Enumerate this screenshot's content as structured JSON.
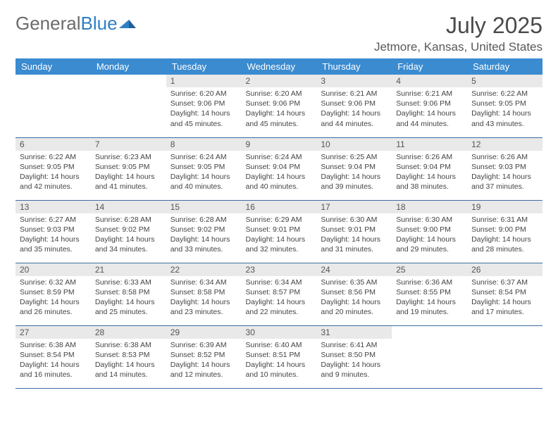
{
  "brand": {
    "part1": "General",
    "part2": "Blue"
  },
  "title": "July 2025",
  "location": "Jetmore, Kansas, United States",
  "colors": {
    "header_bg": "#3b8bd0",
    "header_text": "#ffffff",
    "daynum_bg": "#e9e9e9",
    "border": "#3b6ea0",
    "brand_gray": "#6b6b6b",
    "brand_blue": "#2f7fc4"
  },
  "weekdays": [
    "Sunday",
    "Monday",
    "Tuesday",
    "Wednesday",
    "Thursday",
    "Friday",
    "Saturday"
  ],
  "weeks": [
    [
      null,
      null,
      {
        "n": "1",
        "sunrise": "6:20 AM",
        "sunset": "9:06 PM",
        "daylight": "14 hours and 45 minutes."
      },
      {
        "n": "2",
        "sunrise": "6:20 AM",
        "sunset": "9:06 PM",
        "daylight": "14 hours and 45 minutes."
      },
      {
        "n": "3",
        "sunrise": "6:21 AM",
        "sunset": "9:06 PM",
        "daylight": "14 hours and 44 minutes."
      },
      {
        "n": "4",
        "sunrise": "6:21 AM",
        "sunset": "9:06 PM",
        "daylight": "14 hours and 44 minutes."
      },
      {
        "n": "5",
        "sunrise": "6:22 AM",
        "sunset": "9:05 PM",
        "daylight": "14 hours and 43 minutes."
      }
    ],
    [
      {
        "n": "6",
        "sunrise": "6:22 AM",
        "sunset": "9:05 PM",
        "daylight": "14 hours and 42 minutes."
      },
      {
        "n": "7",
        "sunrise": "6:23 AM",
        "sunset": "9:05 PM",
        "daylight": "14 hours and 41 minutes."
      },
      {
        "n": "8",
        "sunrise": "6:24 AM",
        "sunset": "9:05 PM",
        "daylight": "14 hours and 40 minutes."
      },
      {
        "n": "9",
        "sunrise": "6:24 AM",
        "sunset": "9:04 PM",
        "daylight": "14 hours and 40 minutes."
      },
      {
        "n": "10",
        "sunrise": "6:25 AM",
        "sunset": "9:04 PM",
        "daylight": "14 hours and 39 minutes."
      },
      {
        "n": "11",
        "sunrise": "6:26 AM",
        "sunset": "9:04 PM",
        "daylight": "14 hours and 38 minutes."
      },
      {
        "n": "12",
        "sunrise": "6:26 AM",
        "sunset": "9:03 PM",
        "daylight": "14 hours and 37 minutes."
      }
    ],
    [
      {
        "n": "13",
        "sunrise": "6:27 AM",
        "sunset": "9:03 PM",
        "daylight": "14 hours and 35 minutes."
      },
      {
        "n": "14",
        "sunrise": "6:28 AM",
        "sunset": "9:02 PM",
        "daylight": "14 hours and 34 minutes."
      },
      {
        "n": "15",
        "sunrise": "6:28 AM",
        "sunset": "9:02 PM",
        "daylight": "14 hours and 33 minutes."
      },
      {
        "n": "16",
        "sunrise": "6:29 AM",
        "sunset": "9:01 PM",
        "daylight": "14 hours and 32 minutes."
      },
      {
        "n": "17",
        "sunrise": "6:30 AM",
        "sunset": "9:01 PM",
        "daylight": "14 hours and 31 minutes."
      },
      {
        "n": "18",
        "sunrise": "6:30 AM",
        "sunset": "9:00 PM",
        "daylight": "14 hours and 29 minutes."
      },
      {
        "n": "19",
        "sunrise": "6:31 AM",
        "sunset": "9:00 PM",
        "daylight": "14 hours and 28 minutes."
      }
    ],
    [
      {
        "n": "20",
        "sunrise": "6:32 AM",
        "sunset": "8:59 PM",
        "daylight": "14 hours and 26 minutes."
      },
      {
        "n": "21",
        "sunrise": "6:33 AM",
        "sunset": "8:58 PM",
        "daylight": "14 hours and 25 minutes."
      },
      {
        "n": "22",
        "sunrise": "6:34 AM",
        "sunset": "8:58 PM",
        "daylight": "14 hours and 23 minutes."
      },
      {
        "n": "23",
        "sunrise": "6:34 AM",
        "sunset": "8:57 PM",
        "daylight": "14 hours and 22 minutes."
      },
      {
        "n": "24",
        "sunrise": "6:35 AM",
        "sunset": "8:56 PM",
        "daylight": "14 hours and 20 minutes."
      },
      {
        "n": "25",
        "sunrise": "6:36 AM",
        "sunset": "8:55 PM",
        "daylight": "14 hours and 19 minutes."
      },
      {
        "n": "26",
        "sunrise": "6:37 AM",
        "sunset": "8:54 PM",
        "daylight": "14 hours and 17 minutes."
      }
    ],
    [
      {
        "n": "27",
        "sunrise": "6:38 AM",
        "sunset": "8:54 PM",
        "daylight": "14 hours and 16 minutes."
      },
      {
        "n": "28",
        "sunrise": "6:38 AM",
        "sunset": "8:53 PM",
        "daylight": "14 hours and 14 minutes."
      },
      {
        "n": "29",
        "sunrise": "6:39 AM",
        "sunset": "8:52 PM",
        "daylight": "14 hours and 12 minutes."
      },
      {
        "n": "30",
        "sunrise": "6:40 AM",
        "sunset": "8:51 PM",
        "daylight": "14 hours and 10 minutes."
      },
      {
        "n": "31",
        "sunrise": "6:41 AM",
        "sunset": "8:50 PM",
        "daylight": "14 hours and 9 minutes."
      },
      null,
      null
    ]
  ],
  "labels": {
    "sunrise": "Sunrise: ",
    "sunset": "Sunset: ",
    "daylight": "Daylight: "
  }
}
